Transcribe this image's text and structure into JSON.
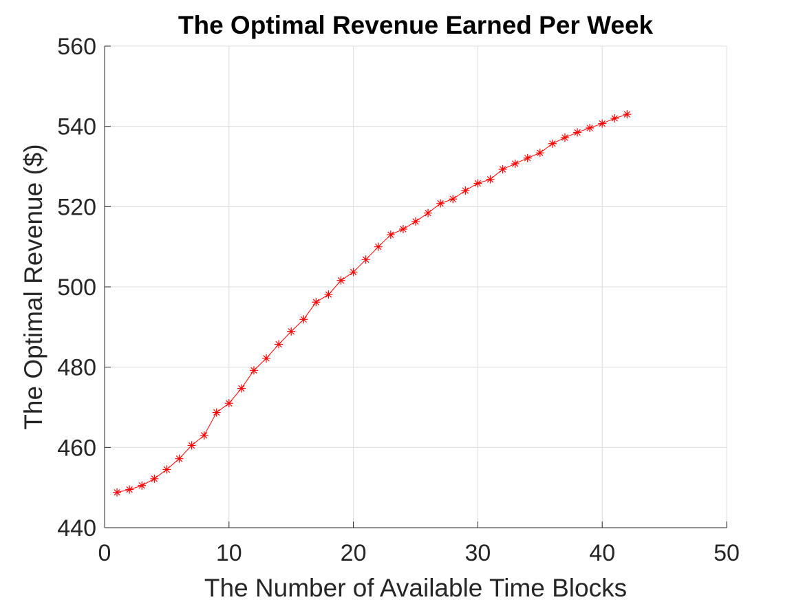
{
  "chart_data": {
    "type": "line",
    "title": "The Optimal Revenue Earned Per Week",
    "xlabel": "The Number of Available Time Blocks",
    "ylabel": "The Optimal Revenue ($)",
    "xlim": [
      0,
      50
    ],
    "ylim": [
      440,
      560
    ],
    "xticks": [
      0,
      10,
      20,
      30,
      40,
      50
    ],
    "yticks": [
      440,
      460,
      480,
      500,
      520,
      540,
      560
    ],
    "grid": true,
    "series": [
      {
        "color": "#ff0000",
        "marker": "asterisk",
        "x": [
          1,
          2,
          3,
          4,
          5,
          6,
          7,
          8,
          9,
          10,
          11,
          12,
          13,
          14,
          15,
          16,
          17,
          18,
          19,
          20,
          21,
          22,
          23,
          24,
          25,
          26,
          27,
          28,
          29,
          30,
          31,
          32,
          33,
          34,
          35,
          36,
          37,
          38,
          39,
          40,
          41,
          42
        ],
        "y": [
          448.8,
          449.5,
          450.5,
          452.2,
          454.5,
          457.2,
          460.5,
          463.0,
          468.7,
          471.0,
          474.7,
          479.2,
          482.2,
          485.7,
          488.9,
          491.9,
          496.2,
          498.1,
          501.6,
          503.7,
          506.8,
          510.0,
          513.0,
          514.4,
          516.3,
          518.4,
          520.8,
          521.9,
          524.0,
          525.8,
          526.8,
          529.3,
          530.7,
          532.1,
          533.4,
          535.7,
          537.2,
          538.5,
          539.6,
          540.7,
          542.0,
          543.0
        ]
      }
    ]
  }
}
